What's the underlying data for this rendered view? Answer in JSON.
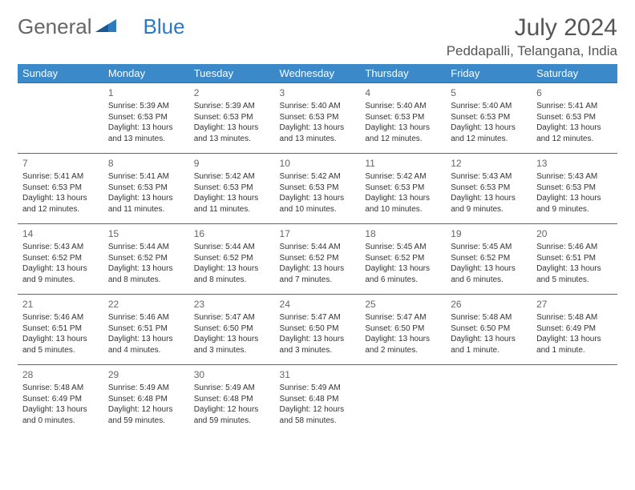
{
  "logo": {
    "text1": "General",
    "text2": "Blue"
  },
  "title": "July 2024",
  "location": "Peddapalli, Telangana, India",
  "headers": [
    "Sunday",
    "Monday",
    "Tuesday",
    "Wednesday",
    "Thursday",
    "Friday",
    "Saturday"
  ],
  "colors": {
    "header_bg": "#3b89c9",
    "header_text": "#ffffff",
    "border": "#3b6fa0",
    "logo_blue": "#2d7abf",
    "text": "#333333",
    "title_color": "#555555"
  },
  "weeks": [
    [
      {
        "day": "",
        "lines": []
      },
      {
        "day": "1",
        "lines": [
          "Sunrise: 5:39 AM",
          "Sunset: 6:53 PM",
          "Daylight: 13 hours and 13 minutes."
        ]
      },
      {
        "day": "2",
        "lines": [
          "Sunrise: 5:39 AM",
          "Sunset: 6:53 PM",
          "Daylight: 13 hours and 13 minutes."
        ]
      },
      {
        "day": "3",
        "lines": [
          "Sunrise: 5:40 AM",
          "Sunset: 6:53 PM",
          "Daylight: 13 hours and 13 minutes."
        ]
      },
      {
        "day": "4",
        "lines": [
          "Sunrise: 5:40 AM",
          "Sunset: 6:53 PM",
          "Daylight: 13 hours and 12 minutes."
        ]
      },
      {
        "day": "5",
        "lines": [
          "Sunrise: 5:40 AM",
          "Sunset: 6:53 PM",
          "Daylight: 13 hours and 12 minutes."
        ]
      },
      {
        "day": "6",
        "lines": [
          "Sunrise: 5:41 AM",
          "Sunset: 6:53 PM",
          "Daylight: 13 hours and 12 minutes."
        ]
      }
    ],
    [
      {
        "day": "7",
        "lines": [
          "Sunrise: 5:41 AM",
          "Sunset: 6:53 PM",
          "Daylight: 13 hours and 12 minutes."
        ]
      },
      {
        "day": "8",
        "lines": [
          "Sunrise: 5:41 AM",
          "Sunset: 6:53 PM",
          "Daylight: 13 hours and 11 minutes."
        ]
      },
      {
        "day": "9",
        "lines": [
          "Sunrise: 5:42 AM",
          "Sunset: 6:53 PM",
          "Daylight: 13 hours and 11 minutes."
        ]
      },
      {
        "day": "10",
        "lines": [
          "Sunrise: 5:42 AM",
          "Sunset: 6:53 PM",
          "Daylight: 13 hours and 10 minutes."
        ]
      },
      {
        "day": "11",
        "lines": [
          "Sunrise: 5:42 AM",
          "Sunset: 6:53 PM",
          "Daylight: 13 hours and 10 minutes."
        ]
      },
      {
        "day": "12",
        "lines": [
          "Sunrise: 5:43 AM",
          "Sunset: 6:53 PM",
          "Daylight: 13 hours and 9 minutes."
        ]
      },
      {
        "day": "13",
        "lines": [
          "Sunrise: 5:43 AM",
          "Sunset: 6:53 PM",
          "Daylight: 13 hours and 9 minutes."
        ]
      }
    ],
    [
      {
        "day": "14",
        "lines": [
          "Sunrise: 5:43 AM",
          "Sunset: 6:52 PM",
          "Daylight: 13 hours and 9 minutes."
        ]
      },
      {
        "day": "15",
        "lines": [
          "Sunrise: 5:44 AM",
          "Sunset: 6:52 PM",
          "Daylight: 13 hours and 8 minutes."
        ]
      },
      {
        "day": "16",
        "lines": [
          "Sunrise: 5:44 AM",
          "Sunset: 6:52 PM",
          "Daylight: 13 hours and 8 minutes."
        ]
      },
      {
        "day": "17",
        "lines": [
          "Sunrise: 5:44 AM",
          "Sunset: 6:52 PM",
          "Daylight: 13 hours and 7 minutes."
        ]
      },
      {
        "day": "18",
        "lines": [
          "Sunrise: 5:45 AM",
          "Sunset: 6:52 PM",
          "Daylight: 13 hours and 6 minutes."
        ]
      },
      {
        "day": "19",
        "lines": [
          "Sunrise: 5:45 AM",
          "Sunset: 6:52 PM",
          "Daylight: 13 hours and 6 minutes."
        ]
      },
      {
        "day": "20",
        "lines": [
          "Sunrise: 5:46 AM",
          "Sunset: 6:51 PM",
          "Daylight: 13 hours and 5 minutes."
        ]
      }
    ],
    [
      {
        "day": "21",
        "lines": [
          "Sunrise: 5:46 AM",
          "Sunset: 6:51 PM",
          "Daylight: 13 hours and 5 minutes."
        ]
      },
      {
        "day": "22",
        "lines": [
          "Sunrise: 5:46 AM",
          "Sunset: 6:51 PM",
          "Daylight: 13 hours and 4 minutes."
        ]
      },
      {
        "day": "23",
        "lines": [
          "Sunrise: 5:47 AM",
          "Sunset: 6:50 PM",
          "Daylight: 13 hours and 3 minutes."
        ]
      },
      {
        "day": "24",
        "lines": [
          "Sunrise: 5:47 AM",
          "Sunset: 6:50 PM",
          "Daylight: 13 hours and 3 minutes."
        ]
      },
      {
        "day": "25",
        "lines": [
          "Sunrise: 5:47 AM",
          "Sunset: 6:50 PM",
          "Daylight: 13 hours and 2 minutes."
        ]
      },
      {
        "day": "26",
        "lines": [
          "Sunrise: 5:48 AM",
          "Sunset: 6:50 PM",
          "Daylight: 13 hours and 1 minute."
        ]
      },
      {
        "day": "27",
        "lines": [
          "Sunrise: 5:48 AM",
          "Sunset: 6:49 PM",
          "Daylight: 13 hours and 1 minute."
        ]
      }
    ],
    [
      {
        "day": "28",
        "lines": [
          "Sunrise: 5:48 AM",
          "Sunset: 6:49 PM",
          "Daylight: 13 hours and 0 minutes."
        ]
      },
      {
        "day": "29",
        "lines": [
          "Sunrise: 5:49 AM",
          "Sunset: 6:48 PM",
          "Daylight: 12 hours and 59 minutes."
        ]
      },
      {
        "day": "30",
        "lines": [
          "Sunrise: 5:49 AM",
          "Sunset: 6:48 PM",
          "Daylight: 12 hours and 59 minutes."
        ]
      },
      {
        "day": "31",
        "lines": [
          "Sunrise: 5:49 AM",
          "Sunset: 6:48 PM",
          "Daylight: 12 hours and 58 minutes."
        ]
      },
      {
        "day": "",
        "lines": []
      },
      {
        "day": "",
        "lines": []
      },
      {
        "day": "",
        "lines": []
      }
    ]
  ]
}
